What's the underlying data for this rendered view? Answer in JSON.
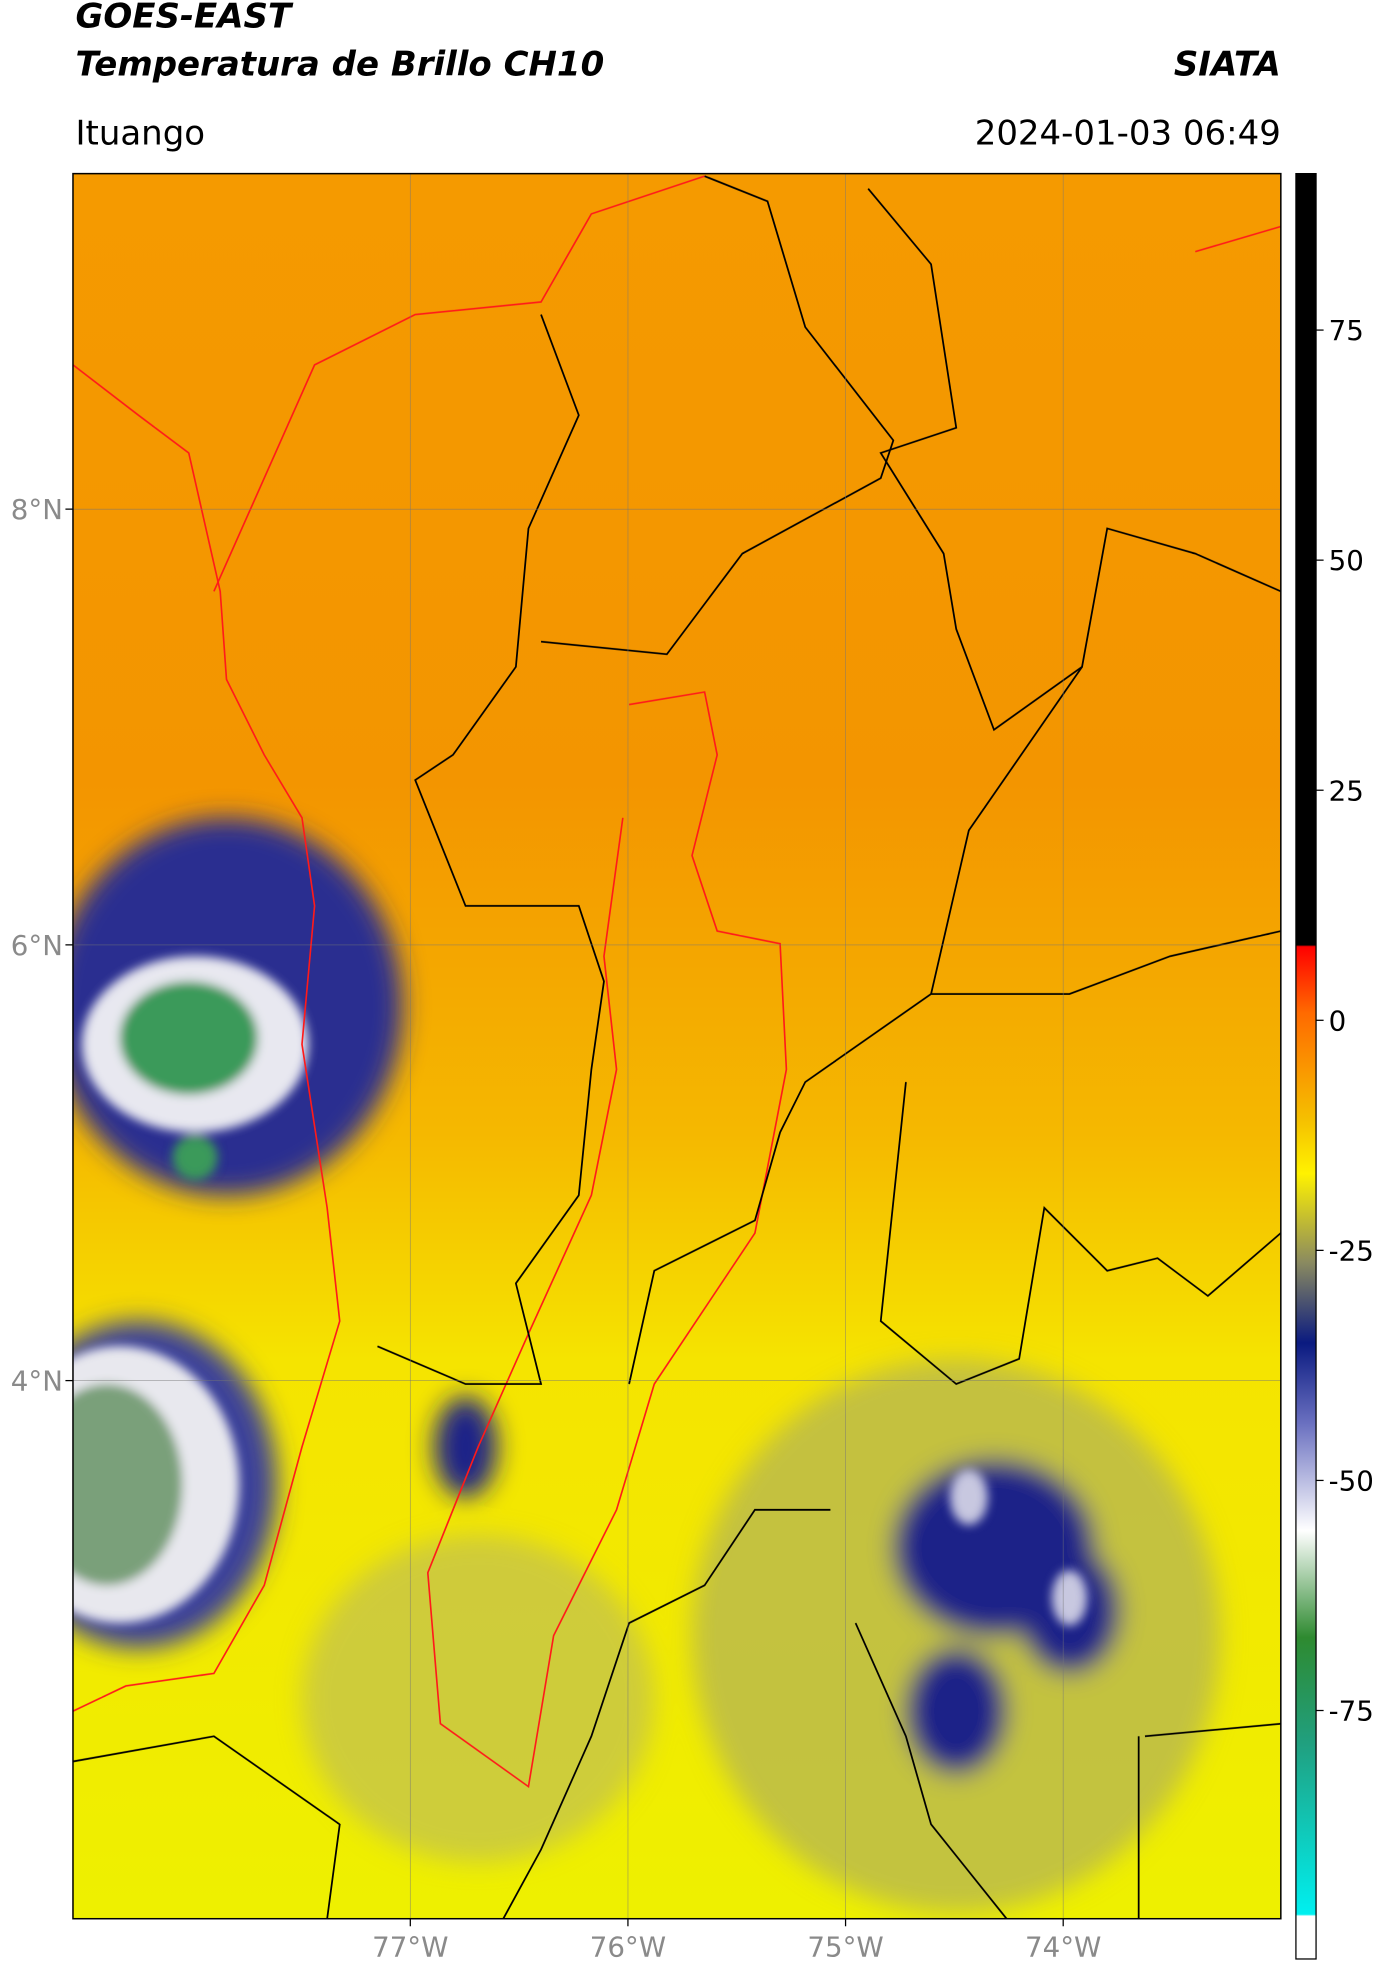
{
  "header": {
    "title": "GOES-EAST",
    "subtitle": "Temperatura de Brillo CH10",
    "source": "SIATA",
    "location": "Ituango",
    "timestamp": "2024-01-03 06:49"
  },
  "map": {
    "xlim": [
      -78.55,
      -73.0
    ],
    "ylim": [
      1.53,
      9.54
    ],
    "xticks": [
      {
        "value": -77,
        "label": "77°W"
      },
      {
        "value": -76,
        "label": "76°W"
      },
      {
        "value": -75,
        "label": "75°W"
      },
      {
        "value": -74,
        "label": "74°W"
      }
    ],
    "yticks": [
      {
        "value": 8,
        "label": "8°N"
      },
      {
        "value": 6,
        "label": "6°N"
      },
      {
        "value": 4,
        "label": "4°N"
      }
    ],
    "grid": true
  },
  "colorbar": {
    "ylim": [
      -102,
      92
    ],
    "yticks": [
      75,
      50,
      25,
      0,
      -25,
      -50,
      -75
    ]
  }
}
